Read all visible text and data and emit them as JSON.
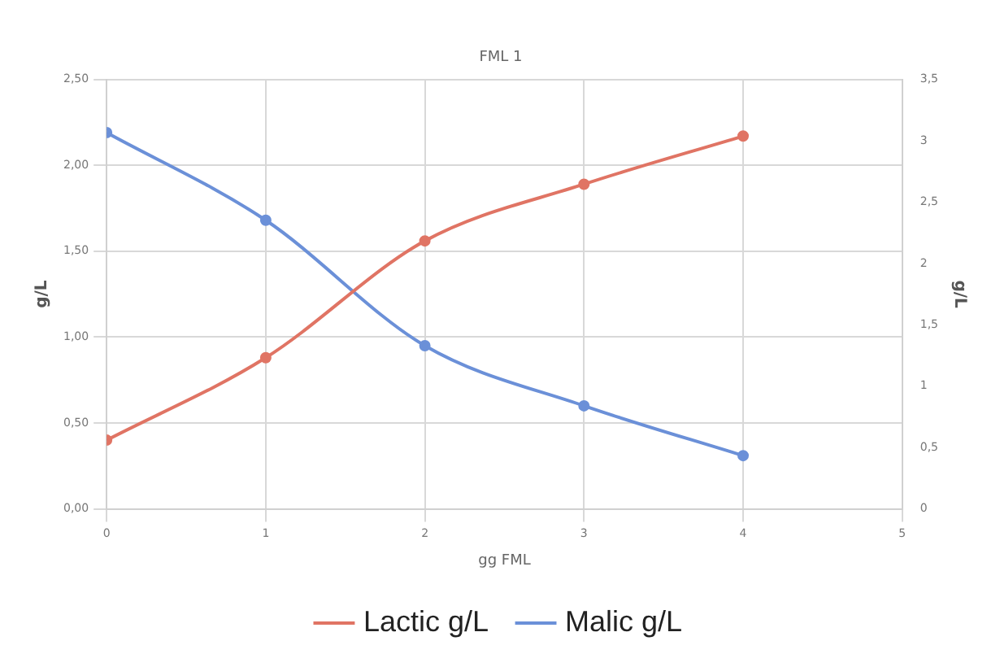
{
  "chart_data": {
    "type": "line",
    "title": "FML 1",
    "xlabel": "gg FML",
    "ylabel": "g/L",
    "y2label": "g/L",
    "x": [
      0,
      1,
      2,
      3,
      4
    ],
    "series": [
      {
        "name": "Lactic g/L",
        "color": "#e07464",
        "values": [
          0.4,
          0.88,
          1.56,
          1.89,
          2.17
        ]
      },
      {
        "name": "Malic g/L",
        "color": "#6b90d8",
        "values": [
          2.19,
          1.68,
          0.95,
          0.6,
          0.31
        ]
      }
    ],
    "xlim": [
      0,
      5
    ],
    "xticks": [
      0,
      1,
      2,
      3,
      4,
      5
    ],
    "ylim": [
      0,
      2.5
    ],
    "yticks": [
      {
        "value": 0,
        "label": "0,00"
      },
      {
        "value": 0.5,
        "label": "0,50"
      },
      {
        "value": 1,
        "label": "1,00"
      },
      {
        "value": 1.5,
        "label": "1,50"
      },
      {
        "value": 2,
        "label": "2,00"
      },
      {
        "value": 2.5,
        "label": "2,50"
      }
    ],
    "y2lim": [
      0,
      3.5
    ],
    "y2ticks": [
      0,
      {
        "value": 0.5,
        "label": "0,5"
      },
      1,
      {
        "value": 1.5,
        "label": "1,5"
      },
      2,
      {
        "value": 2.5,
        "label": "2,5"
      },
      3,
      {
        "value": 3.5,
        "label": "3,5"
      }
    ],
    "grid": true,
    "legend": "bottom",
    "marker": "circle",
    "line_style": "solid"
  }
}
